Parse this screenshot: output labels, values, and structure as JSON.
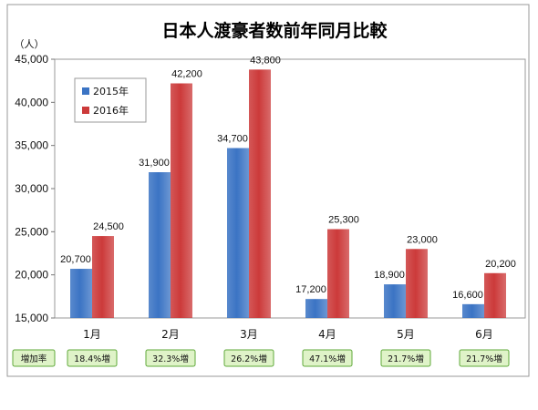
{
  "chart_data": {
    "type": "bar",
    "title": "日本人渡豪者数前年同月比較",
    "unit_label": "（人）",
    "categories": [
      "1月",
      "2月",
      "3月",
      "4月",
      "5月",
      "6月"
    ],
    "ylim": [
      15000,
      45000
    ],
    "yticks": [
      15000,
      20000,
      25000,
      30000,
      35000,
      40000,
      45000
    ],
    "ytick_labels": [
      "15,000",
      "20,000",
      "25,000",
      "30,000",
      "35,000",
      "40,000",
      "45,000"
    ],
    "grid": false,
    "legend_position": "top-left",
    "series": [
      {
        "name": "2015年",
        "color": "#3b74c4",
        "values": [
          20700,
          31900,
          34700,
          17200,
          18900,
          16600
        ],
        "value_labels": [
          "20,700",
          "31,900",
          "34,700",
          "17,200",
          "18,900",
          "16,600"
        ]
      },
      {
        "name": "2016年",
        "color": "#cc3a3a",
        "values": [
          24500,
          42200,
          43800,
          25300,
          23000,
          20200
        ],
        "value_labels": [
          "24,500",
          "42,200",
          "43,800",
          "25,300",
          "23,000",
          "20,200"
        ]
      }
    ],
    "growth_row": {
      "label": "増加率",
      "values": [
        "18.4%増",
        "32.3%増",
        "26.2%増",
        "47.1%増",
        "21.7%増",
        "21.7%増"
      ],
      "box_color": "#dff3c8",
      "border_color": "#5fa83a"
    }
  }
}
